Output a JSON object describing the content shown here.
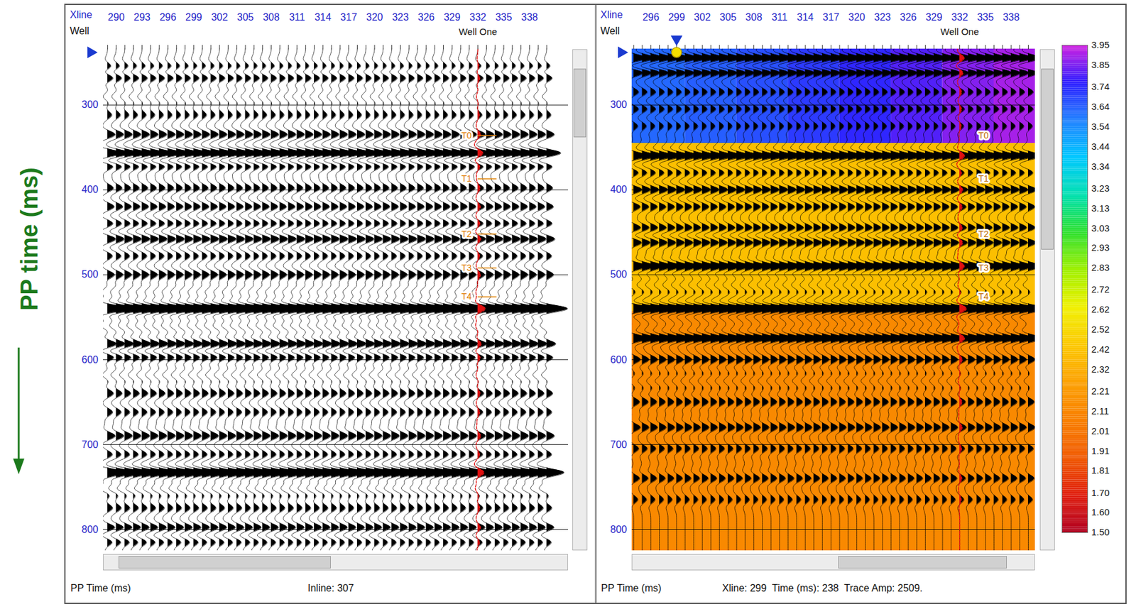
{
  "chart_data": [
    {
      "type": "seismic_wiggle",
      "y_title": "PP time (ms)",
      "x_label": "Xline",
      "well_label": "Well",
      "well": {
        "name": "Well One",
        "xline": 332
      },
      "xlim": [
        288.5,
        342.5
      ],
      "xticks": [
        290,
        293,
        296,
        299,
        302,
        305,
        308,
        311,
        314,
        317,
        320,
        323,
        326,
        329,
        332,
        335,
        338
      ],
      "ylim": [
        234,
        825
      ],
      "yticks": [
        300,
        400,
        500,
        600,
        700,
        800
      ],
      "grid": true,
      "y_label": "PP Time (ms)",
      "footer": "Inline: 307",
      "first_trace": 289,
      "last_trace": 340,
      "reflectors": {
        "time": [
          255,
          268,
          290,
          312,
          335,
          357,
          372,
          398,
          420,
          440,
          458,
          478,
          500,
          520,
          540,
          560,
          582,
          597,
          618,
          640,
          662,
          690,
          712,
          733,
          752,
          775,
          798,
          815
        ],
        "amplitude": [
          0.6,
          0.8,
          -0.5,
          0.5,
          0.9,
          1.8,
          0.9,
          0.7,
          0.8,
          0.7,
          1.0,
          0.6,
          0.8,
          -0.6,
          2.4,
          -0.7,
          1.2,
          0.9,
          -0.6,
          0.7,
          0.6,
          0.9,
          0.6,
          2.0,
          -0.8,
          0.6,
          0.9,
          0.6
        ]
      },
      "horizons": {
        "names": [
          "T0",
          "T1",
          "T2",
          "T3",
          "T4"
        ],
        "time": [
          336,
          387,
          452,
          492,
          526
        ]
      },
      "cursor": {
        "time": 238
      }
    },
    {
      "type": "seismic_wiggle_model",
      "x_label": "Xline",
      "well_label": "Well",
      "well": {
        "name": "Well One",
        "xline": 332
      },
      "xlim": [
        293.8,
        340.8
      ],
      "xticks": [
        296,
        299,
        302,
        305,
        308,
        311,
        314,
        317,
        320,
        323,
        326,
        329,
        332,
        335,
        338
      ],
      "ylim": [
        234,
        825
      ],
      "yticks": [
        300,
        400,
        500,
        600,
        700,
        800
      ],
      "grid": true,
      "y_label": "PP Time (ms)",
      "footer": "Xline: 299  Time (ms): 238  Trace Amp: 2509.",
      "first_trace": 294,
      "last_trace": 340,
      "reflectors": {
        "time": [
          245,
          262,
          285,
          305,
          325,
          360,
          380,
          400,
          420,
          445,
          462,
          490,
          512,
          540,
          575,
          600,
          625,
          650,
          680,
          705,
          740,
          765
        ],
        "amplitude": [
          1.6,
          1.2,
          0.6,
          0.6,
          0.5,
          1.6,
          0.6,
          1.0,
          0.8,
          0.9,
          1.0,
          1.5,
          -0.6,
          2.2,
          1.6,
          0.8,
          -0.5,
          0.7,
          0.8,
          0.6,
          0.7,
          0.5
        ]
      },
      "horizons": {
        "names": [
          "T0",
          "T1",
          "T2",
          "T3",
          "T4"
        ],
        "time": [
          336,
          387,
          452,
          492,
          526
        ]
      },
      "cursor": {
        "xline": 299,
        "time": 238
      },
      "model": {
        "cells": [
          {
            "x1": 293.8,
            "x2": 300,
            "t1": 234,
            "t2": 345,
            "value": 3.62
          },
          {
            "x1": 300,
            "x2": 306,
            "t1": 234,
            "t2": 345,
            "value": 3.64
          },
          {
            "x1": 306,
            "x2": 312,
            "t1": 234,
            "t2": 345,
            "value": 3.67
          },
          {
            "x1": 312,
            "x2": 318,
            "t1": 234,
            "t2": 345,
            "value": 3.71
          },
          {
            "x1": 318,
            "x2": 324,
            "t1": 234,
            "t2": 345,
            "value": 3.75
          },
          {
            "x1": 324,
            "x2": 330,
            "t1": 234,
            "t2": 345,
            "value": 3.8
          },
          {
            "x1": 330,
            "x2": 336,
            "t1": 234,
            "t2": 345,
            "value": 3.86
          },
          {
            "x1": 336,
            "x2": 340.8,
            "t1": 234,
            "t2": 345,
            "value": 3.9
          },
          {
            "x1": 293.8,
            "x2": 340.8,
            "t1": 345,
            "t2": 543,
            "value": 2.4
          },
          {
            "x1": 293.8,
            "x2": 340.8,
            "t1": 543,
            "t2": 825,
            "value": 2.12
          }
        ]
      },
      "colorbar": {
        "range": [
          1.5,
          3.95
        ],
        "ticks": [
          3.95,
          3.85,
          3.74,
          3.64,
          3.54,
          3.44,
          3.34,
          3.23,
          3.13,
          3.03,
          2.93,
          2.83,
          2.72,
          2.62,
          2.52,
          2.42,
          2.32,
          2.21,
          2.11,
          2.01,
          1.91,
          1.81,
          {
            "value": 1.7,
            "label": "1.70"
          },
          {
            "value": 1.6,
            "label": "1.60"
          },
          {
            "value": 1.5,
            "label": "1.50"
          }
        ],
        "colors": [
          "#b00020",
          "#e02010",
          "#f05a00",
          "#f88000",
          "#fca000",
          "#fcc800",
          "#f0f000",
          "#a0f000",
          "#30e030",
          "#00e0b0",
          "#00c8ff",
          "#2080ff",
          "#3020ff",
          "#d020e0"
        ]
      }
    }
  ]
}
